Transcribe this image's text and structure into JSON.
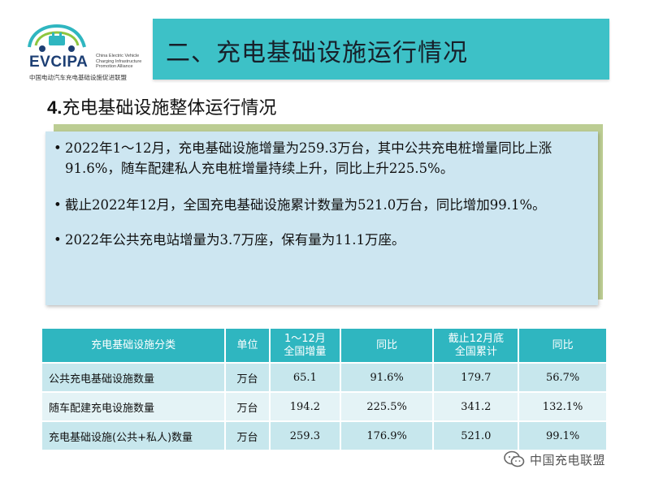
{
  "logo": {
    "abbr": "EVCIPA",
    "en": "China Electric Vehicle Charging Infrastructure Promotion Alliance",
    "cn": "中国电动汽车充电基础设施促进联盟"
  },
  "header": {
    "title": "二、充电基础设施运行情况"
  },
  "section": {
    "num": "4.",
    "title": "充电基础设施整体运行情况"
  },
  "bullets": [
    "2022年1～12月，充电基础设施增量为259.3万台，其中公共充电桩增量同比上涨91.6%，随车配建私人充电桩增量持续上升，同比上升225.5%。",
    "截止2022年12月，全国充电基础设施累计数量为521.0万台，同比增加99.1%。",
    "2022年公共充电站增量为3.7万座，保有量为11.1万座。"
  ],
  "table": {
    "headers": [
      "充电基础设施分类",
      "单位",
      "1～12月\n全国增量",
      "同比",
      "截止12月底\n全国累计",
      "同比"
    ],
    "rows": [
      [
        "公共充电基础设施数量",
        "万台",
        "65.1",
        "91.6%",
        "179.7",
        "56.7%"
      ],
      [
        "随车配建充电设施数量",
        "万台",
        "194.2",
        "225.5%",
        "341.2",
        "132.1%"
      ],
      [
        "充电基础设施(公共+私人)数量",
        "万台",
        "259.3",
        "176.9%",
        "521.0",
        "99.1%"
      ]
    ]
  },
  "watermark": {
    "text": "中国充电联盟",
    "icon": "wechat-icon"
  },
  "colors": {
    "header_bar": "#3dc1c7",
    "table_header": "#2fb6c0",
    "panel": "#cde6f1",
    "panel_shadow": "#bccd93"
  }
}
